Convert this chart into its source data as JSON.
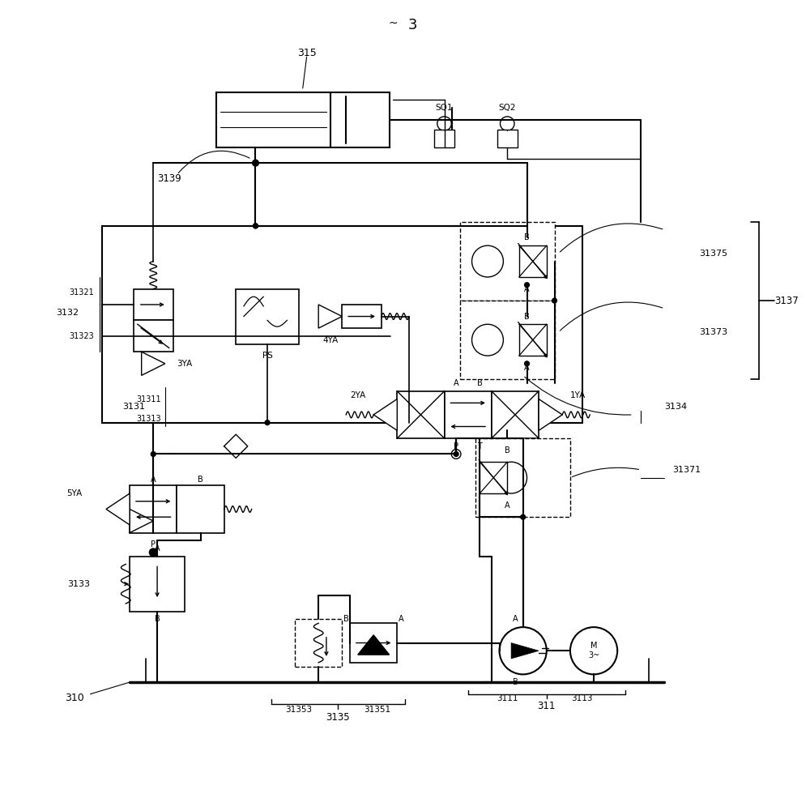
{
  "bg_color": "#ffffff",
  "line_color": "#000000",
  "fig_width": 10.0,
  "fig_height": 9.85,
  "dpi": 100,
  "labels": {
    "title": "3",
    "315": "315",
    "SQ1": "SQ1",
    "SQ2": "SQ2",
    "3139": "3139",
    "PS": "PS",
    "4YA": "4YA",
    "3YA": "3YA",
    "31321": "31321",
    "31323": "31323",
    "3132": "3132",
    "31375": "31375",
    "31373": "31373",
    "3134": "3134",
    "3137": "3137",
    "31311": "31311",
    "31313": "31313",
    "3131": "3131",
    "2YA": "2YA",
    "1YA": "1YA",
    "5YA": "5YA",
    "3133": "3133",
    "31371": "31371",
    "31353": "31353",
    "31351": "31351",
    "3135": "3135",
    "310": "310",
    "3111": "3111",
    "3113": "3113",
    "311": "311",
    "A": "A",
    "B": "B",
    "P": "P",
    "T": "T",
    "M3": "M\n3~"
  }
}
